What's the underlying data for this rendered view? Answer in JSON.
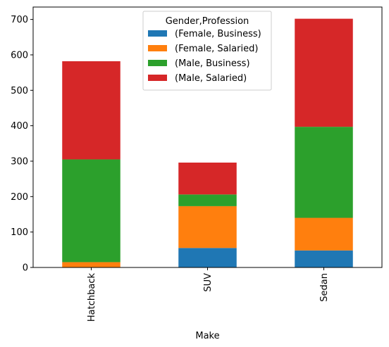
{
  "chart_data": {
    "type": "bar",
    "stacked": true,
    "categories": [
      "Hatchback",
      "SUV",
      "Sedan"
    ],
    "series": [
      {
        "name": "(Female, Business)",
        "color": "#1f77b4",
        "values": [
          0,
          55,
          48
        ]
      },
      {
        "name": "(Female, Salaried)",
        "color": "#ff7f0e",
        "values": [
          15,
          118,
          92
        ]
      },
      {
        "name": "(Male, Business)",
        "color": "#2ca02c",
        "values": [
          290,
          33,
          257
        ]
      },
      {
        "name": "(Male, Salaried)",
        "color": "#d62728",
        "values": [
          277,
          90,
          305
        ]
      }
    ],
    "xlabel": "Make",
    "ylabel": "",
    "ylim": [
      0,
      735
    ],
    "yticks": [
      0,
      100,
      200,
      300,
      400,
      500,
      600,
      700
    ],
    "legend_title": "Gender,Profession",
    "legend_loc": "upper center",
    "grid": false
  }
}
